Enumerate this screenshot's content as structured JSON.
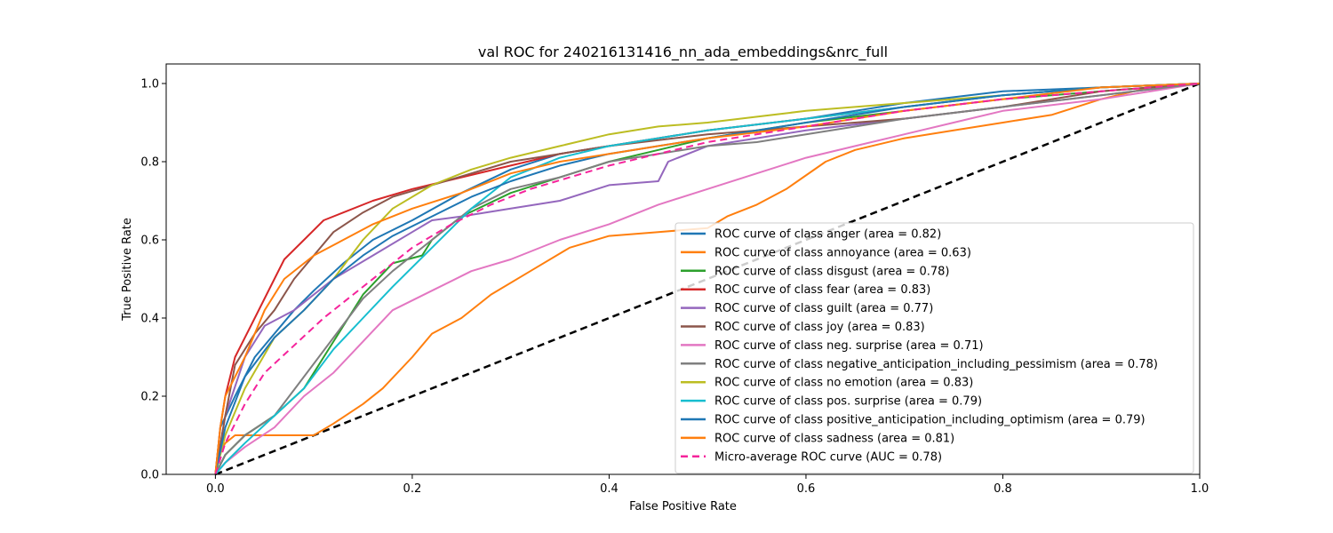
{
  "chart_data": {
    "type": "line",
    "title": "val ROC for 240216131416_nn_ada_embeddings&nrc_full",
    "xlabel": "False Positive Rate",
    "ylabel": "True Positive Rate",
    "xlim": [
      -0.05,
      1.0
    ],
    "ylim": [
      0.0,
      1.05
    ],
    "xticks": [
      "0.0",
      "0.2",
      "0.4",
      "0.6",
      "0.8",
      "1.0"
    ],
    "yticks": [
      "0.0",
      "0.2",
      "0.4",
      "0.6",
      "0.8",
      "1.0"
    ],
    "grid": false,
    "legend_position": "lower-right",
    "series": [
      {
        "name": "ROC curve of class anger (area = 0.82)",
        "color": "#1f77b4",
        "dash": "solid",
        "points": [
          [
            0,
            0
          ],
          [
            0.005,
            0.12
          ],
          [
            0.02,
            0.2
          ],
          [
            0.04,
            0.3
          ],
          [
            0.06,
            0.36
          ],
          [
            0.08,
            0.42
          ],
          [
            0.1,
            0.47
          ],
          [
            0.13,
            0.54
          ],
          [
            0.16,
            0.6
          ],
          [
            0.2,
            0.65
          ],
          [
            0.25,
            0.72
          ],
          [
            0.3,
            0.78
          ],
          [
            0.35,
            0.82
          ],
          [
            0.4,
            0.84
          ],
          [
            0.5,
            0.88
          ],
          [
            0.6,
            0.91
          ],
          [
            0.7,
            0.95
          ],
          [
            0.8,
            0.98
          ],
          [
            0.9,
            0.99
          ],
          [
            1,
            1
          ]
        ]
      },
      {
        "name": "ROC curve of class annoyance (area = 0.63)",
        "color": "#ff7f0e",
        "dash": "solid",
        "points": [
          [
            0,
            0
          ],
          [
            0.003,
            0.05
          ],
          [
            0.01,
            0.08
          ],
          [
            0.02,
            0.1
          ],
          [
            0.1,
            0.1
          ],
          [
            0.12,
            0.13
          ],
          [
            0.15,
            0.18
          ],
          [
            0.17,
            0.22
          ],
          [
            0.2,
            0.3
          ],
          [
            0.22,
            0.36
          ],
          [
            0.25,
            0.4
          ],
          [
            0.28,
            0.46
          ],
          [
            0.32,
            0.52
          ],
          [
            0.36,
            0.58
          ],
          [
            0.4,
            0.61
          ],
          [
            0.45,
            0.62
          ],
          [
            0.5,
            0.63
          ],
          [
            0.52,
            0.66
          ],
          [
            0.55,
            0.69
          ],
          [
            0.58,
            0.73
          ],
          [
            0.62,
            0.8
          ],
          [
            0.65,
            0.83
          ],
          [
            0.7,
            0.86
          ],
          [
            0.75,
            0.88
          ],
          [
            0.8,
            0.9
          ],
          [
            0.85,
            0.92
          ],
          [
            0.9,
            0.96
          ],
          [
            0.95,
            0.99
          ],
          [
            1,
            1
          ]
        ]
      },
      {
        "name": "ROC curve of class disgust (area = 0.78)",
        "color": "#2ca02c",
        "dash": "solid",
        "points": [
          [
            0,
            0
          ],
          [
            0.01,
            0.05
          ],
          [
            0.03,
            0.1
          ],
          [
            0.06,
            0.15
          ],
          [
            0.09,
            0.22
          ],
          [
            0.12,
            0.34
          ],
          [
            0.15,
            0.46
          ],
          [
            0.18,
            0.54
          ],
          [
            0.21,
            0.56
          ],
          [
            0.22,
            0.6
          ],
          [
            0.25,
            0.66
          ],
          [
            0.3,
            0.72
          ],
          [
            0.35,
            0.76
          ],
          [
            0.4,
            0.8
          ],
          [
            0.45,
            0.83
          ],
          [
            0.5,
            0.86
          ],
          [
            0.55,
            0.88
          ],
          [
            0.6,
            0.9
          ],
          [
            0.7,
            0.93
          ],
          [
            0.8,
            0.96
          ],
          [
            0.9,
            0.98
          ],
          [
            1,
            1
          ]
        ]
      },
      {
        "name": "ROC curve of class fear (area = 0.83)",
        "color": "#d62728",
        "dash": "solid",
        "points": [
          [
            0,
            0
          ],
          [
            0.005,
            0.12
          ],
          [
            0.01,
            0.2
          ],
          [
            0.02,
            0.3
          ],
          [
            0.04,
            0.4
          ],
          [
            0.06,
            0.5
          ],
          [
            0.07,
            0.55
          ],
          [
            0.09,
            0.6
          ],
          [
            0.11,
            0.65
          ],
          [
            0.13,
            0.67
          ],
          [
            0.16,
            0.7
          ],
          [
            0.2,
            0.73
          ],
          [
            0.25,
            0.76
          ],
          [
            0.3,
            0.79
          ],
          [
            0.35,
            0.82
          ],
          [
            0.4,
            0.84
          ],
          [
            0.45,
            0.86
          ],
          [
            0.5,
            0.88
          ],
          [
            0.6,
            0.91
          ],
          [
            0.7,
            0.94
          ],
          [
            0.8,
            0.97
          ],
          [
            0.9,
            0.99
          ],
          [
            1,
            1
          ]
        ]
      },
      {
        "name": "ROC curve of class guilt (area = 0.77)",
        "color": "#9467bd",
        "dash": "solid",
        "points": [
          [
            0,
            0
          ],
          [
            0.01,
            0.15
          ],
          [
            0.03,
            0.3
          ],
          [
            0.05,
            0.38
          ],
          [
            0.08,
            0.42
          ],
          [
            0.12,
            0.5
          ],
          [
            0.16,
            0.56
          ],
          [
            0.2,
            0.62
          ],
          [
            0.22,
            0.65
          ],
          [
            0.25,
            0.66
          ],
          [
            0.3,
            0.68
          ],
          [
            0.35,
            0.7
          ],
          [
            0.4,
            0.74
          ],
          [
            0.45,
            0.75
          ],
          [
            0.46,
            0.8
          ],
          [
            0.5,
            0.84
          ],
          [
            0.6,
            0.88
          ],
          [
            0.7,
            0.91
          ],
          [
            0.8,
            0.94
          ],
          [
            0.9,
            0.97
          ],
          [
            1,
            1
          ]
        ]
      },
      {
        "name": "ROC curve of class joy (area = 0.83)",
        "color": "#8c564b",
        "dash": "solid",
        "points": [
          [
            0,
            0
          ],
          [
            0.01,
            0.15
          ],
          [
            0.02,
            0.28
          ],
          [
            0.04,
            0.36
          ],
          [
            0.06,
            0.42
          ],
          [
            0.08,
            0.5
          ],
          [
            0.1,
            0.56
          ],
          [
            0.12,
            0.62
          ],
          [
            0.15,
            0.67
          ],
          [
            0.18,
            0.71
          ],
          [
            0.22,
            0.74
          ],
          [
            0.26,
            0.77
          ],
          [
            0.3,
            0.8
          ],
          [
            0.35,
            0.82
          ],
          [
            0.4,
            0.84
          ],
          [
            0.5,
            0.87
          ],
          [
            0.6,
            0.89
          ],
          [
            0.7,
            0.91
          ],
          [
            0.8,
            0.94
          ],
          [
            0.9,
            0.98
          ],
          [
            1,
            1
          ]
        ]
      },
      {
        "name": "ROC curve of class neg. surprise (area = 0.71)",
        "color": "#e377c2",
        "dash": "solid",
        "points": [
          [
            0,
            0
          ],
          [
            0.01,
            0.03
          ],
          [
            0.03,
            0.07
          ],
          [
            0.06,
            0.12
          ],
          [
            0.09,
            0.2
          ],
          [
            0.12,
            0.26
          ],
          [
            0.15,
            0.34
          ],
          [
            0.18,
            0.42
          ],
          [
            0.22,
            0.47
          ],
          [
            0.26,
            0.52
          ],
          [
            0.3,
            0.55
          ],
          [
            0.35,
            0.6
          ],
          [
            0.4,
            0.64
          ],
          [
            0.45,
            0.69
          ],
          [
            0.5,
            0.73
          ],
          [
            0.55,
            0.77
          ],
          [
            0.6,
            0.81
          ],
          [
            0.65,
            0.84
          ],
          [
            0.7,
            0.87
          ],
          [
            0.75,
            0.9
          ],
          [
            0.8,
            0.93
          ],
          [
            0.9,
            0.96
          ],
          [
            1,
            1
          ]
        ]
      },
      {
        "name": "ROC curve of class negative_anticipation_including_pessimism (area = 0.78)",
        "color": "#7f7f7f",
        "dash": "solid",
        "points": [
          [
            0,
            0
          ],
          [
            0.01,
            0.05
          ],
          [
            0.03,
            0.1
          ],
          [
            0.06,
            0.15
          ],
          [
            0.09,
            0.25
          ],
          [
            0.12,
            0.35
          ],
          [
            0.15,
            0.45
          ],
          [
            0.18,
            0.52
          ],
          [
            0.22,
            0.6
          ],
          [
            0.26,
            0.68
          ],
          [
            0.3,
            0.73
          ],
          [
            0.35,
            0.76
          ],
          [
            0.4,
            0.8
          ],
          [
            0.45,
            0.82
          ],
          [
            0.5,
            0.84
          ],
          [
            0.55,
            0.85
          ],
          [
            0.6,
            0.87
          ],
          [
            0.7,
            0.91
          ],
          [
            0.8,
            0.94
          ],
          [
            0.9,
            0.97
          ],
          [
            1,
            1
          ]
        ]
      },
      {
        "name": "ROC curve of class no emotion (area = 0.83)",
        "color": "#bcbd22",
        "dash": "solid",
        "points": [
          [
            0,
            0
          ],
          [
            0.01,
            0.1
          ],
          [
            0.03,
            0.22
          ],
          [
            0.06,
            0.35
          ],
          [
            0.09,
            0.42
          ],
          [
            0.12,
            0.5
          ],
          [
            0.15,
            0.6
          ],
          [
            0.18,
            0.68
          ],
          [
            0.22,
            0.74
          ],
          [
            0.26,
            0.78
          ],
          [
            0.3,
            0.81
          ],
          [
            0.35,
            0.84
          ],
          [
            0.4,
            0.87
          ],
          [
            0.45,
            0.89
          ],
          [
            0.5,
            0.9
          ],
          [
            0.6,
            0.93
          ],
          [
            0.7,
            0.95
          ],
          [
            0.8,
            0.97
          ],
          [
            0.9,
            0.99
          ],
          [
            1,
            1
          ]
        ]
      },
      {
        "name": "ROC curve of class pos. surprise (area = 0.79)",
        "color": "#17becf",
        "dash": "solid",
        "points": [
          [
            0,
            0
          ],
          [
            0.01,
            0.03
          ],
          [
            0.03,
            0.08
          ],
          [
            0.06,
            0.15
          ],
          [
            0.09,
            0.22
          ],
          [
            0.12,
            0.32
          ],
          [
            0.15,
            0.4
          ],
          [
            0.18,
            0.48
          ],
          [
            0.22,
            0.58
          ],
          [
            0.26,
            0.68
          ],
          [
            0.3,
            0.76
          ],
          [
            0.35,
            0.81
          ],
          [
            0.4,
            0.84
          ],
          [
            0.45,
            0.86
          ],
          [
            0.5,
            0.88
          ],
          [
            0.6,
            0.91
          ],
          [
            0.7,
            0.94
          ],
          [
            0.8,
            0.97
          ],
          [
            0.9,
            0.99
          ],
          [
            1,
            1
          ]
        ]
      },
      {
        "name": "ROC curve of class positive_anticipation_including_optimism (area = 0.79)",
        "color": "#1f77b4",
        "dash": "solid",
        "points": [
          [
            0,
            0
          ],
          [
            0.01,
            0.12
          ],
          [
            0.03,
            0.25
          ],
          [
            0.06,
            0.35
          ],
          [
            0.09,
            0.42
          ],
          [
            0.12,
            0.5
          ],
          [
            0.15,
            0.56
          ],
          [
            0.18,
            0.61
          ],
          [
            0.22,
            0.66
          ],
          [
            0.26,
            0.71
          ],
          [
            0.3,
            0.75
          ],
          [
            0.35,
            0.79
          ],
          [
            0.4,
            0.82
          ],
          [
            0.45,
            0.84
          ],
          [
            0.5,
            0.86
          ],
          [
            0.6,
            0.9
          ],
          [
            0.7,
            0.94
          ],
          [
            0.8,
            0.97
          ],
          [
            0.9,
            0.99
          ],
          [
            1,
            1
          ]
        ]
      },
      {
        "name": "ROC curve of class sadness (area = 0.81)",
        "color": "#ff7f0e",
        "dash": "solid",
        "points": [
          [
            0,
            0
          ],
          [
            0.005,
            0.12
          ],
          [
            0.01,
            0.2
          ],
          [
            0.03,
            0.3
          ],
          [
            0.05,
            0.42
          ],
          [
            0.07,
            0.5
          ],
          [
            0.1,
            0.56
          ],
          [
            0.13,
            0.6
          ],
          [
            0.16,
            0.64
          ],
          [
            0.2,
            0.68
          ],
          [
            0.25,
            0.72
          ],
          [
            0.3,
            0.77
          ],
          [
            0.35,
            0.8
          ],
          [
            0.4,
            0.82
          ],
          [
            0.5,
            0.86
          ],
          [
            0.6,
            0.89
          ],
          [
            0.7,
            0.93
          ],
          [
            0.8,
            0.96
          ],
          [
            0.9,
            0.99
          ],
          [
            1,
            1
          ]
        ]
      },
      {
        "name": "Micro-average ROC curve (AUC = 0.78)",
        "color": "#f5239b",
        "dash": "dashed",
        "points": [
          [
            0,
            0
          ],
          [
            0.01,
            0.08
          ],
          [
            0.03,
            0.18
          ],
          [
            0.05,
            0.26
          ],
          [
            0.08,
            0.33
          ],
          [
            0.11,
            0.4
          ],
          [
            0.14,
            0.46
          ],
          [
            0.17,
            0.52
          ],
          [
            0.2,
            0.58
          ],
          [
            0.24,
            0.64
          ],
          [
            0.28,
            0.69
          ],
          [
            0.32,
            0.73
          ],
          [
            0.36,
            0.76
          ],
          [
            0.4,
            0.79
          ],
          [
            0.45,
            0.82
          ],
          [
            0.5,
            0.85
          ],
          [
            0.6,
            0.89
          ],
          [
            0.7,
            0.93
          ],
          [
            0.8,
            0.96
          ],
          [
            0.9,
            0.98
          ],
          [
            1,
            1
          ]
        ]
      }
    ],
    "reference_line": {
      "points": [
        [
          0,
          0
        ],
        [
          1,
          1
        ]
      ],
      "color": "#000000",
      "dash": "dashed"
    }
  }
}
